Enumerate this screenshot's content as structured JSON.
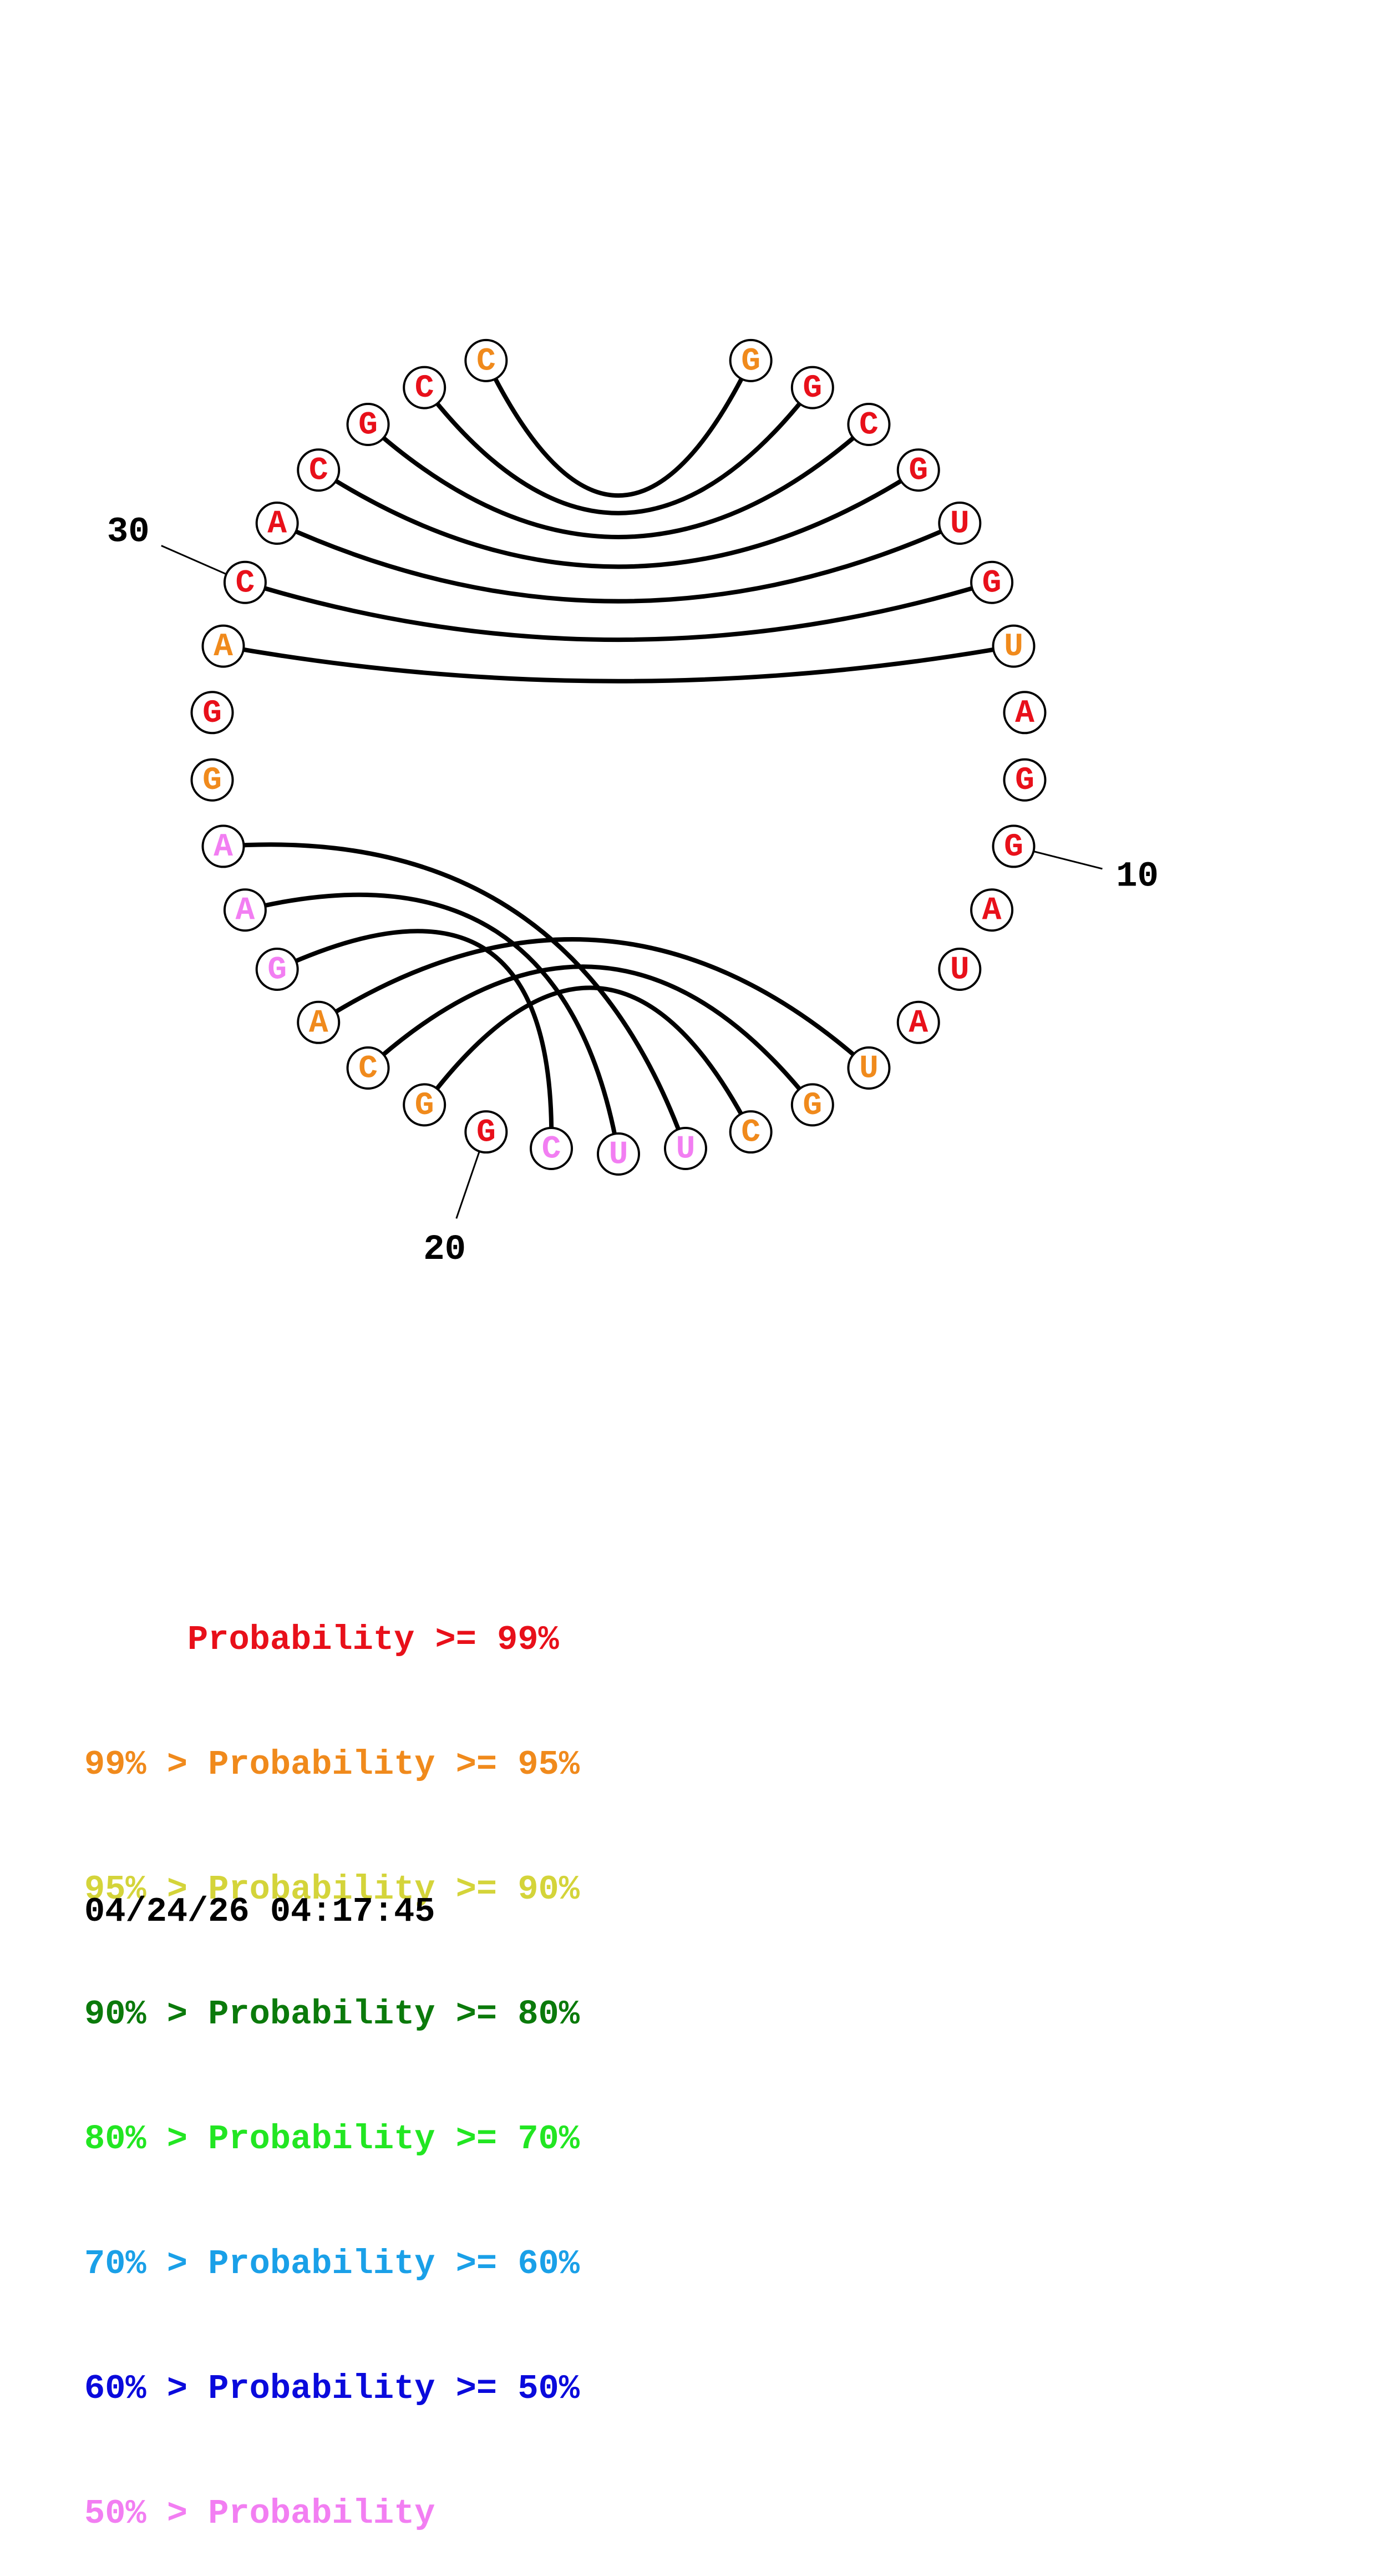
{
  "colors": {
    "p99": "#e8101a",
    "p95": "#f08a1c",
    "p90": "#d4d43a",
    "p80": "#0b7a0b",
    "p70": "#22e622",
    "p60": "#1aa0e8",
    "p50": "#0a0adc",
    "plt50": "#f27ef2"
  },
  "nucleotides": [
    {
      "n": 1,
      "base": "G",
      "cat": "p95"
    },
    {
      "n": 2,
      "base": "G",
      "cat": "p99"
    },
    {
      "n": 3,
      "base": "C",
      "cat": "p99"
    },
    {
      "n": 4,
      "base": "G",
      "cat": "p99"
    },
    {
      "n": 5,
      "base": "U",
      "cat": "p99"
    },
    {
      "n": 6,
      "base": "G",
      "cat": "p99"
    },
    {
      "n": 7,
      "base": "U",
      "cat": "p95"
    },
    {
      "n": 8,
      "base": "A",
      "cat": "p99"
    },
    {
      "n": 9,
      "base": "G",
      "cat": "p99"
    },
    {
      "n": 10,
      "base": "G",
      "cat": "p99"
    },
    {
      "n": 11,
      "base": "A",
      "cat": "p99"
    },
    {
      "n": 12,
      "base": "U",
      "cat": "p99"
    },
    {
      "n": 13,
      "base": "A",
      "cat": "p99"
    },
    {
      "n": 14,
      "base": "U",
      "cat": "p95"
    },
    {
      "n": 15,
      "base": "G",
      "cat": "p95"
    },
    {
      "n": 16,
      "base": "C",
      "cat": "p95"
    },
    {
      "n": 17,
      "base": "U",
      "cat": "plt50"
    },
    {
      "n": 18,
      "base": "U",
      "cat": "plt50"
    },
    {
      "n": 19,
      "base": "C",
      "cat": "plt50"
    },
    {
      "n": 20,
      "base": "G",
      "cat": "p99"
    },
    {
      "n": 21,
      "base": "G",
      "cat": "p95"
    },
    {
      "n": 22,
      "base": "C",
      "cat": "p95"
    },
    {
      "n": 23,
      "base": "A",
      "cat": "p95"
    },
    {
      "n": 24,
      "base": "G",
      "cat": "plt50"
    },
    {
      "n": 25,
      "base": "A",
      "cat": "plt50"
    },
    {
      "n": 26,
      "base": "A",
      "cat": "plt50"
    },
    {
      "n": 27,
      "base": "G",
      "cat": "p95"
    },
    {
      "n": 28,
      "base": "G",
      "cat": "p99"
    },
    {
      "n": 29,
      "base": "A",
      "cat": "p95"
    },
    {
      "n": 30,
      "base": "C",
      "cat": "p99"
    },
    {
      "n": 31,
      "base": "A",
      "cat": "p99"
    },
    {
      "n": 32,
      "base": "C",
      "cat": "p99"
    },
    {
      "n": 33,
      "base": "G",
      "cat": "p99"
    },
    {
      "n": 34,
      "base": "C",
      "cat": "p99"
    },
    {
      "n": 35,
      "base": "C",
      "cat": "p95"
    }
  ],
  "pairs": [
    [
      1,
      35
    ],
    [
      2,
      34
    ],
    [
      3,
      33
    ],
    [
      4,
      32
    ],
    [
      5,
      31
    ],
    [
      6,
      30
    ],
    [
      7,
      29
    ],
    [
      14,
      23
    ],
    [
      15,
      22
    ],
    [
      16,
      21
    ],
    [
      17,
      26
    ],
    [
      18,
      25
    ],
    [
      19,
      24
    ]
  ],
  "tick_labels": [
    {
      "n": 10,
      "text": "10"
    },
    {
      "n": 20,
      "text": "20"
    },
    {
      "n": 30,
      "text": "30"
    }
  ],
  "legend": [
    {
      "text": "     Probability >= 99%",
      "cat": "p99"
    },
    {
      "text": "99% > Probability >= 95%",
      "cat": "p95"
    },
    {
      "text": "95% > Probability >= 90%",
      "cat": "p90"
    },
    {
      "text": "90% > Probability >= 80%",
      "cat": "p80"
    },
    {
      "text": "80% > Probability >= 70%",
      "cat": "p70"
    },
    {
      "text": "70% > Probability >= 60%",
      "cat": "p60"
    },
    {
      "text": "60% > Probability >= 50%",
      "cat": "p50"
    },
    {
      "text": "50% > Probability",
      "cat": "plt50"
    }
  ],
  "timestamp": "04/24/26 04:17:45"
}
